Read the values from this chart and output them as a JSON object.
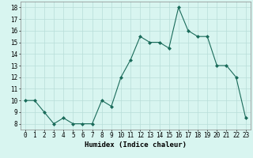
{
  "x": [
    0,
    1,
    2,
    3,
    4,
    5,
    6,
    7,
    8,
    9,
    10,
    11,
    12,
    13,
    14,
    15,
    16,
    17,
    18,
    19,
    20,
    21,
    22,
    23
  ],
  "y": [
    10,
    10,
    9,
    8,
    8.5,
    8,
    8,
    8,
    10,
    9.5,
    12,
    13.5,
    15.5,
    15,
    15,
    14.5,
    18,
    16,
    15.5,
    15.5,
    13,
    13,
    12,
    8.5
  ],
  "xlabel": "Humidex (Indice chaleur)",
  "xlim": [
    -0.5,
    23.5
  ],
  "ylim": [
    7.5,
    18.5
  ],
  "yticks": [
    8,
    9,
    10,
    11,
    12,
    13,
    14,
    15,
    16,
    17,
    18
  ],
  "xticks": [
    0,
    1,
    2,
    3,
    4,
    5,
    6,
    7,
    8,
    9,
    10,
    11,
    12,
    13,
    14,
    15,
    16,
    17,
    18,
    19,
    20,
    21,
    22,
    23
  ],
  "line_color": "#1a6b5a",
  "marker_color": "#1a6b5a",
  "bg_color": "#d8f5f0",
  "grid_color": "#b8ddd8",
  "tick_label_fontsize": 5.5,
  "xlabel_fontsize": 6.5
}
